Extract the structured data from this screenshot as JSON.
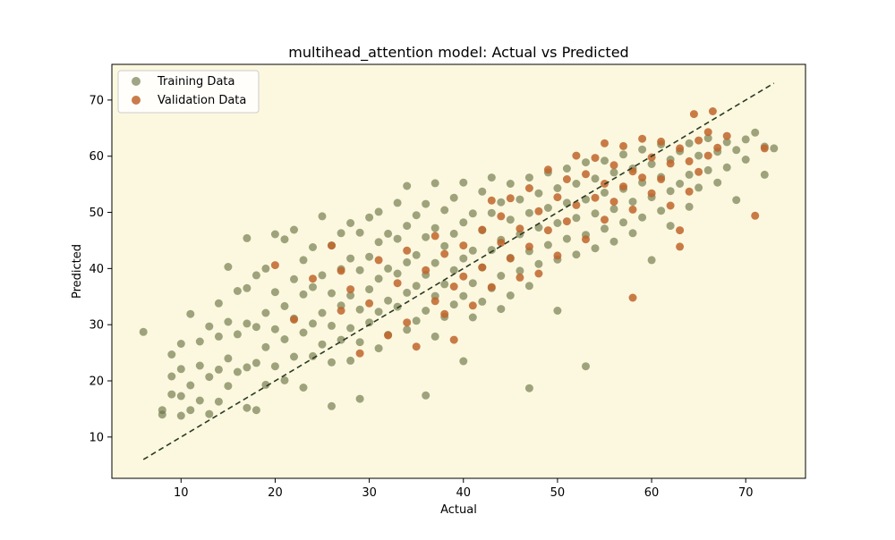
{
  "chart_data": {
    "type": "scatter",
    "title": "multihead_attention model: Actual vs Predicted",
    "xlabel": "Actual",
    "ylabel": "Predicted",
    "xlim": [
      2.65,
      76.35
    ],
    "ylim": [
      2.65,
      76.35
    ],
    "xticks": [
      10,
      20,
      30,
      40,
      50,
      60,
      70
    ],
    "yticks": [
      10,
      20,
      30,
      40,
      50,
      60,
      70
    ],
    "grid": false,
    "legend_position": "top-left",
    "background_color": "#fcf8e0",
    "reference_line": {
      "style": "dashed",
      "color": "#2b3a22",
      "from": [
        6,
        6
      ],
      "to": [
        73,
        73
      ]
    },
    "series": [
      {
        "name": "Training Data",
        "color": "#6b7545",
        "opacity": 0.65,
        "points": [
          [
            6,
            28.7
          ],
          [
            8,
            14
          ],
          [
            8,
            14.8
          ],
          [
            9,
            20.8
          ],
          [
            9,
            17.6
          ],
          [
            9,
            24.7
          ],
          [
            10,
            13.8
          ],
          [
            10,
            17.3
          ],
          [
            10,
            22.1
          ],
          [
            10,
            26.6
          ],
          [
            11,
            31.9
          ],
          [
            11,
            14.8
          ],
          [
            11,
            19.2
          ],
          [
            12,
            27
          ],
          [
            12,
            22.7
          ],
          [
            12,
            16.5
          ],
          [
            13,
            29.7
          ],
          [
            13,
            20.7
          ],
          [
            13,
            14.1
          ],
          [
            14,
            33.8
          ],
          [
            14,
            27.9
          ],
          [
            14,
            22
          ],
          [
            14,
            16.3
          ],
          [
            15,
            40.3
          ],
          [
            15,
            30.5
          ],
          [
            15,
            24
          ],
          [
            15,
            19.1
          ],
          [
            16,
            36
          ],
          [
            16,
            28.3
          ],
          [
            16,
            21.6
          ],
          [
            17,
            45.4
          ],
          [
            17,
            36.5
          ],
          [
            17,
            30.2
          ],
          [
            17,
            22.4
          ],
          [
            17,
            15.2
          ],
          [
            18,
            38.8
          ],
          [
            18,
            29.6
          ],
          [
            18,
            23.2
          ],
          [
            18,
            14.8
          ],
          [
            19,
            40
          ],
          [
            19,
            32.1
          ],
          [
            19,
            26
          ],
          [
            19,
            19.3
          ],
          [
            20,
            46.1
          ],
          [
            20,
            35.8
          ],
          [
            20,
            29.2
          ],
          [
            20,
            22.6
          ],
          [
            21,
            45.2
          ],
          [
            21,
            33.3
          ],
          [
            21,
            27.4
          ],
          [
            21,
            20.1
          ],
          [
            22,
            46.9
          ],
          [
            22,
            38.1
          ],
          [
            22,
            31.1
          ],
          [
            22,
            24.3
          ],
          [
            23,
            41.5
          ],
          [
            23,
            35.4
          ],
          [
            23,
            28.6
          ],
          [
            23,
            18.8
          ],
          [
            24,
            43.8
          ],
          [
            24,
            36.7
          ],
          [
            24,
            30.2
          ],
          [
            24,
            24.4
          ],
          [
            25,
            49.3
          ],
          [
            25,
            38.8
          ],
          [
            25,
            32.1
          ],
          [
            25,
            26.5
          ],
          [
            26,
            15.5
          ],
          [
            26,
            44.1
          ],
          [
            26,
            35.6
          ],
          [
            26,
            29.8
          ],
          [
            26,
            23.3
          ],
          [
            27,
            46.3
          ],
          [
            27,
            39.9
          ],
          [
            27,
            33.4
          ],
          [
            27,
            27.3
          ],
          [
            28,
            48.1
          ],
          [
            28,
            41.8
          ],
          [
            28,
            35.2
          ],
          [
            28,
            29.4
          ],
          [
            28,
            23.6
          ],
          [
            29,
            16.8
          ],
          [
            29,
            46.4
          ],
          [
            29,
            39.7
          ],
          [
            29,
            32.7
          ],
          [
            29,
            26.9
          ],
          [
            30,
            49.1
          ],
          [
            30,
            42.1
          ],
          [
            30,
            36.3
          ],
          [
            30,
            30.4
          ],
          [
            31,
            50.1
          ],
          [
            31,
            44.7
          ],
          [
            31,
            38.2
          ],
          [
            31,
            32.3
          ],
          [
            31,
            25.8
          ],
          [
            32,
            46.2
          ],
          [
            32,
            40
          ],
          [
            32,
            34.3
          ],
          [
            32,
            28.2
          ],
          [
            33,
            51.7
          ],
          [
            33,
            45.3
          ],
          [
            33,
            39.1
          ],
          [
            33,
            33.2
          ],
          [
            34,
            54.7
          ],
          [
            34,
            47.6
          ],
          [
            34,
            41.1
          ],
          [
            34,
            35.7
          ],
          [
            34,
            29.1
          ],
          [
            35,
            49.5
          ],
          [
            35,
            42.4
          ],
          [
            35,
            36.9
          ],
          [
            35,
            30.7
          ],
          [
            36,
            17.4
          ],
          [
            36,
            51.5
          ],
          [
            36,
            45.6
          ],
          [
            36,
            38.9
          ],
          [
            36,
            32.5
          ],
          [
            37,
            55.2
          ],
          [
            37,
            47.2
          ],
          [
            37,
            41
          ],
          [
            37,
            35.1
          ],
          [
            37,
            27.9
          ],
          [
            38,
            50.4
          ],
          [
            38,
            44
          ],
          [
            38,
            37.2
          ],
          [
            38,
            31.4
          ],
          [
            39,
            52.6
          ],
          [
            39,
            46.2
          ],
          [
            39,
            39.7
          ],
          [
            39,
            33.6
          ],
          [
            40,
            23.5
          ],
          [
            40,
            55.3
          ],
          [
            40,
            48.2
          ],
          [
            40,
            41.8
          ],
          [
            40,
            35.1
          ],
          [
            41,
            49.8
          ],
          [
            41,
            43.2
          ],
          [
            41,
            37.4
          ],
          [
            41,
            31.3
          ],
          [
            42,
            53.7
          ],
          [
            42,
            46.8
          ],
          [
            42,
            40.2
          ],
          [
            42,
            34.1
          ],
          [
            43,
            56.2
          ],
          [
            43,
            49.9
          ],
          [
            43,
            43.3
          ],
          [
            43,
            36.5
          ],
          [
            44,
            51.8
          ],
          [
            44,
            45.1
          ],
          [
            44,
            38.7
          ],
          [
            44,
            32.8
          ],
          [
            45,
            55.1
          ],
          [
            45,
            48.7
          ],
          [
            45,
            41.9
          ],
          [
            45,
            35.2
          ],
          [
            46,
            52.3
          ],
          [
            46,
            46.1
          ],
          [
            46,
            39.6
          ],
          [
            47,
            18.7
          ],
          [
            47,
            56.2
          ],
          [
            47,
            49.9
          ],
          [
            47,
            43.1
          ],
          [
            47,
            36.9
          ],
          [
            48,
            53.4
          ],
          [
            48,
            47.3
          ],
          [
            48,
            40.8
          ],
          [
            49,
            57.1
          ],
          [
            49,
            50.8
          ],
          [
            49,
            44.2
          ],
          [
            50,
            32.5
          ],
          [
            50,
            54.3
          ],
          [
            50,
            48.1
          ],
          [
            50,
            41.6
          ],
          [
            51,
            57.8
          ],
          [
            51,
            51.7
          ],
          [
            51,
            45.3
          ],
          [
            52,
            55.1
          ],
          [
            52,
            49
          ],
          [
            52,
            42.5
          ],
          [
            53,
            22.6
          ],
          [
            53,
            58.9
          ],
          [
            53,
            52.3
          ],
          [
            53,
            46
          ],
          [
            54,
            56
          ],
          [
            54,
            49.8
          ],
          [
            54,
            43.6
          ],
          [
            55,
            59.2
          ],
          [
            55,
            53.5
          ],
          [
            55,
            47.1
          ],
          [
            56,
            57.1
          ],
          [
            56,
            50.6
          ],
          [
            56,
            44.8
          ],
          [
            57,
            60.3
          ],
          [
            57,
            54.2
          ],
          [
            57,
            48.2
          ],
          [
            58,
            57.8
          ],
          [
            58,
            51.9
          ],
          [
            58,
            46.3
          ],
          [
            59,
            61.2
          ],
          [
            59,
            55.3
          ],
          [
            59,
            49.1
          ],
          [
            60,
            58.6
          ],
          [
            60,
            52.7
          ],
          [
            60,
            41.5
          ],
          [
            61,
            62.1
          ],
          [
            61,
            56.3
          ],
          [
            61,
            50.3
          ],
          [
            62,
            59.4
          ],
          [
            62,
            53.8
          ],
          [
            62,
            47.6
          ],
          [
            63,
            60.9
          ],
          [
            63,
            55.1
          ],
          [
            64,
            62.3
          ],
          [
            64,
            56.7
          ],
          [
            64,
            51
          ],
          [
            65,
            60.1
          ],
          [
            65,
            54.4
          ],
          [
            66,
            63.2
          ],
          [
            66,
            57.5
          ],
          [
            67,
            60.8
          ],
          [
            67,
            55.3
          ],
          [
            68,
            62.5
          ],
          [
            68,
            58
          ],
          [
            69,
            61.1
          ],
          [
            69,
            52.2
          ],
          [
            70,
            63
          ],
          [
            70,
            59.4
          ],
          [
            71,
            64.2
          ],
          [
            72,
            56.7
          ],
          [
            72,
            61.7
          ],
          [
            73,
            61.4
          ]
        ]
      },
      {
        "name": "Validation Data",
        "color": "#c0652a",
        "opacity": 0.85,
        "points": [
          [
            20,
            40.6
          ],
          [
            22,
            30.9
          ],
          [
            24,
            38.2
          ],
          [
            26,
            44.1
          ],
          [
            27,
            39.6
          ],
          [
            27,
            32.5
          ],
          [
            28,
            36.3
          ],
          [
            29,
            24.9
          ],
          [
            30,
            33.8
          ],
          [
            31,
            41.5
          ],
          [
            32,
            28.1
          ],
          [
            33,
            37.4
          ],
          [
            34,
            43.2
          ],
          [
            34,
            30.4
          ],
          [
            35,
            26.1
          ],
          [
            36,
            39.7
          ],
          [
            37,
            34.2
          ],
          [
            37,
            45.8
          ],
          [
            38,
            31.9
          ],
          [
            38,
            42.6
          ],
          [
            39,
            36.8
          ],
          [
            39,
            27.3
          ],
          [
            40,
            44.1
          ],
          [
            40,
            38.6
          ],
          [
            41,
            33.4
          ],
          [
            42,
            46.9
          ],
          [
            42,
            40.2
          ],
          [
            43,
            52.1
          ],
          [
            43,
            36.7
          ],
          [
            44,
            44.6
          ],
          [
            44,
            49.3
          ],
          [
            45,
            41.8
          ],
          [
            45,
            52.5
          ],
          [
            46,
            38.4
          ],
          [
            46,
            47.1
          ],
          [
            47,
            54.3
          ],
          [
            47,
            43.9
          ],
          [
            48,
            50.2
          ],
          [
            48,
            39.1
          ],
          [
            49,
            57.6
          ],
          [
            49,
            46.8
          ],
          [
            50,
            52.7
          ],
          [
            50,
            42.3
          ],
          [
            51,
            55.9
          ],
          [
            51,
            48.4
          ],
          [
            52,
            60.1
          ],
          [
            52,
            51.3
          ],
          [
            53,
            56.8
          ],
          [
            53,
            45.2
          ],
          [
            54,
            59.7
          ],
          [
            54,
            52.6
          ],
          [
            55,
            62.3
          ],
          [
            55,
            55.1
          ],
          [
            55,
            48.7
          ],
          [
            56,
            58.4
          ],
          [
            56,
            51.9
          ],
          [
            57,
            61.8
          ],
          [
            57,
            54.6
          ],
          [
            58,
            34.8
          ],
          [
            58,
            57.3
          ],
          [
            58,
            50.5
          ],
          [
            59,
            63.1
          ],
          [
            59,
            56.2
          ],
          [
            60,
            59.8
          ],
          [
            60,
            53.4
          ],
          [
            61,
            62.6
          ],
          [
            61,
            55.9
          ],
          [
            62,
            58.7
          ],
          [
            62,
            51.2
          ],
          [
            63,
            43.9
          ],
          [
            63,
            61.4
          ],
          [
            63,
            46.8
          ],
          [
            64,
            59.1
          ],
          [
            64,
            53.7
          ],
          [
            65,
            62.8
          ],
          [
            65,
            57.2
          ],
          [
            66,
            64.3
          ],
          [
            66,
            60.1
          ],
          [
            67,
            61.5
          ],
          [
            68,
            63.6
          ],
          [
            71,
            49.4
          ],
          [
            72,
            61.4
          ],
          [
            64.5,
            67.5
          ],
          [
            66.5,
            68
          ]
        ]
      }
    ]
  }
}
